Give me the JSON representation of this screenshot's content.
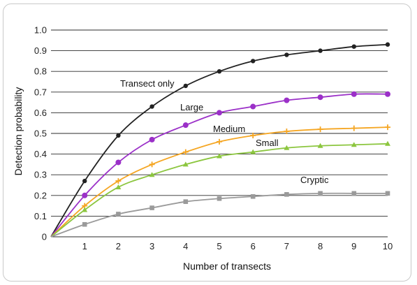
{
  "chart_data": {
    "type": "line",
    "xlabel": "Number of transects",
    "ylabel": "Detection probability",
    "xlim": [
      0,
      10
    ],
    "ylim": [
      0,
      1.0
    ],
    "x_ticks": [
      "1",
      "2",
      "3",
      "4",
      "5",
      "6",
      "7",
      "8",
      "9",
      "10"
    ],
    "y_ticks": [
      "0",
      "0.1",
      "0.2",
      "0.3",
      "0.4",
      "0.5",
      "0.6",
      "0.7",
      "0.8",
      "0.9",
      "1.0"
    ],
    "grid": "horizontal",
    "x": [
      0,
      1,
      2,
      3,
      4,
      5,
      6,
      7,
      8,
      9,
      10
    ],
    "series": [
      {
        "name": "Transect only",
        "color": "#222222",
        "marker": "circle",
        "values": [
          0,
          0.27,
          0.49,
          0.63,
          0.73,
          0.8,
          0.85,
          0.88,
          0.9,
          0.92,
          0.93
        ]
      },
      {
        "name": "Large",
        "color": "#9b30c8",
        "marker": "circle",
        "values": [
          0,
          0.2,
          0.36,
          0.47,
          0.54,
          0.6,
          0.63,
          0.66,
          0.675,
          0.69,
          0.69
        ]
      },
      {
        "name": "Medium",
        "color": "#f5a623",
        "marker": "plus",
        "values": [
          0,
          0.15,
          0.27,
          0.35,
          0.41,
          0.46,
          0.49,
          0.51,
          0.52,
          0.525,
          0.53
        ]
      },
      {
        "name": "Small",
        "color": "#8cc63f",
        "marker": "triangle",
        "values": [
          0,
          0.13,
          0.24,
          0.3,
          0.35,
          0.39,
          0.41,
          0.43,
          0.44,
          0.445,
          0.45
        ]
      },
      {
        "name": "Cryptic",
        "color": "#9a9a9a",
        "marker": "square",
        "values": [
          0,
          0.06,
          0.11,
          0.14,
          0.17,
          0.185,
          0.195,
          0.205,
          0.21,
          0.21,
          0.21
        ]
      }
    ]
  }
}
